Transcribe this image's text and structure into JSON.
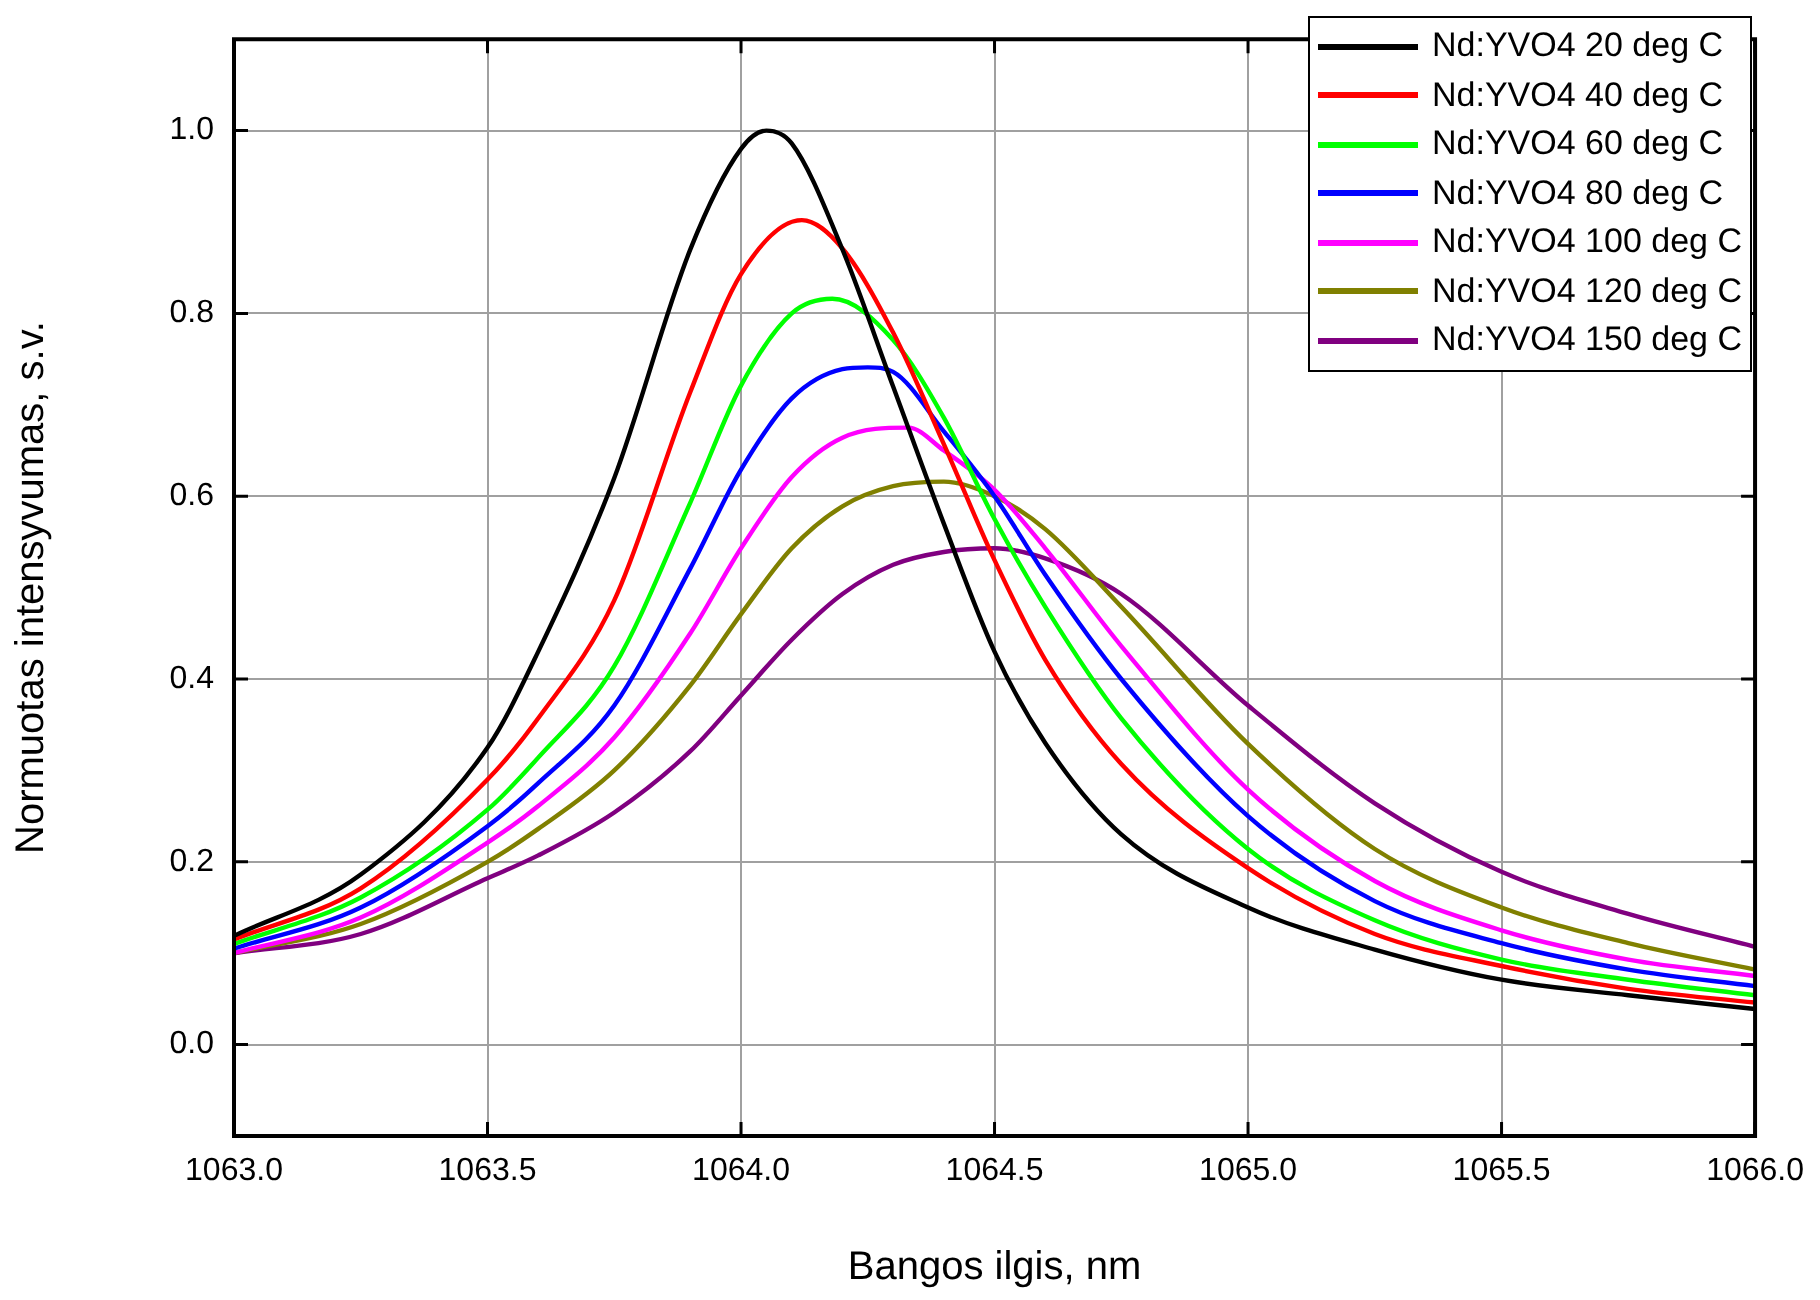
{
  "chart_data": {
    "type": "line",
    "xlabel": "Bangos ilgis, nm",
    "ylabel": "Normuotas intensyvumas, s.v.",
    "xlim": [
      1063.0,
      1066.0
    ],
    "xticks": [
      {
        "value": 1063.0,
        "label": "1063.0"
      },
      {
        "value": 1063.5,
        "label": "1063.5"
      },
      {
        "value": 1064.0,
        "label": "1064.0"
      },
      {
        "value": 1064.5,
        "label": "1064.5"
      },
      {
        "value": 1065.0,
        "label": "1065.0"
      },
      {
        "value": 1065.5,
        "label": "1065.5"
      },
      {
        "value": 1066.0,
        "label": "1066.0"
      }
    ],
    "ylim": [
      -0.1,
      1.1
    ],
    "yticks": [
      {
        "value": 0,
        "label": "0.0"
      },
      {
        "value": 0.2,
        "label": "0.2"
      },
      {
        "value": 0.4,
        "label": "0.4"
      },
      {
        "value": 0.6,
        "label": "0.6"
      },
      {
        "value": 0.8,
        "label": "0.8"
      },
      {
        "value": 1.0,
        "label": "1.0"
      }
    ],
    "grid": true,
    "legend": "top right",
    "marker": "none",
    "line_style": "solid",
    "series": [
      {
        "name": "Nd:YVO4 20 deg C",
        "color": "#000000",
        "x": [
          1063.0,
          1063.25,
          1063.5,
          1063.6,
          1063.75,
          1063.9,
          1064.0,
          1064.05,
          1064.1,
          1064.2,
          1064.3,
          1064.4,
          1064.5,
          1064.6,
          1064.75,
          1065.0,
          1065.25,
          1065.5,
          1065.75,
          1066.0
        ],
        "values": [
          0.119,
          0.186,
          0.325,
          0.43,
          0.62,
          0.87,
          0.98,
          1.0,
          0.986,
          0.87,
          0.72,
          0.57,
          0.43,
          0.33,
          0.23,
          0.15,
          0.104,
          0.071,
          0.054,
          0.039
        ]
      },
      {
        "name": "Nd:YVO4 40 deg C",
        "color": "#ff0000",
        "x": [
          1063.0,
          1063.25,
          1063.5,
          1063.6,
          1063.75,
          1063.9,
          1064.0,
          1064.12,
          1064.2,
          1064.3,
          1064.4,
          1064.5,
          1064.6,
          1064.75,
          1065.0,
          1065.25,
          1065.5,
          1065.75,
          1066.0
        ],
        "values": [
          0.115,
          0.171,
          0.29,
          0.357,
          0.486,
          0.714,
          0.843,
          0.902,
          0.871,
          0.779,
          0.657,
          0.53,
          0.421,
          0.307,
          0.193,
          0.121,
          0.086,
          0.061,
          0.046
        ]
      },
      {
        "name": "Nd:YVO4 60 deg C",
        "color": "#00ff00",
        "x": [
          1063.0,
          1063.25,
          1063.5,
          1063.6,
          1063.75,
          1063.9,
          1064.0,
          1064.1,
          1064.18,
          1064.3,
          1064.4,
          1064.5,
          1064.6,
          1064.75,
          1065.0,
          1065.25,
          1065.5,
          1065.75,
          1066.0
        ],
        "values": [
          0.11,
          0.161,
          0.257,
          0.314,
          0.414,
          0.593,
          0.721,
          0.8,
          0.816,
          0.771,
          0.686,
          0.575,
          0.479,
          0.357,
          0.214,
          0.136,
          0.093,
          0.071,
          0.054
        ]
      },
      {
        "name": "Nd:YVO4 80 deg C",
        "color": "#0000ff",
        "x": [
          1063.0,
          1063.25,
          1063.5,
          1063.6,
          1063.75,
          1063.9,
          1064.0,
          1064.1,
          1064.2,
          1064.25,
          1064.3,
          1064.4,
          1064.5,
          1064.6,
          1064.75,
          1065.0,
          1065.25,
          1065.5,
          1065.75,
          1066.0
        ],
        "values": [
          0.105,
          0.15,
          0.239,
          0.286,
          0.371,
          0.521,
          0.629,
          0.707,
          0.739,
          0.741,
          0.736,
          0.671,
          0.6,
          0.514,
          0.4,
          0.25,
          0.157,
          0.111,
          0.082,
          0.064
        ]
      },
      {
        "name": "Nd:YVO4 100 deg C",
        "color": "#ff00ff",
        "x": [
          1063.0,
          1063.25,
          1063.5,
          1063.6,
          1063.75,
          1063.9,
          1064.0,
          1064.1,
          1064.2,
          1064.33,
          1064.4,
          1064.5,
          1064.6,
          1064.75,
          1065.0,
          1065.25,
          1065.5,
          1065.75,
          1066.0
        ],
        "values": [
          0.1,
          0.139,
          0.221,
          0.261,
          0.336,
          0.45,
          0.543,
          0.621,
          0.664,
          0.675,
          0.65,
          0.607,
          0.543,
          0.436,
          0.279,
          0.179,
          0.125,
          0.093,
          0.075
        ]
      },
      {
        "name": "Nd:YVO4 120 deg C",
        "color": "#808000",
        "x": [
          1063.0,
          1063.25,
          1063.5,
          1063.6,
          1063.75,
          1063.9,
          1064.0,
          1064.1,
          1064.2,
          1064.3,
          1064.4,
          1064.5,
          1064.6,
          1064.75,
          1065.0,
          1065.25,
          1065.5,
          1065.75,
          1066.0
        ],
        "values": [
          0.1,
          0.132,
          0.2,
          0.236,
          0.3,
          0.393,
          0.471,
          0.543,
          0.589,
          0.611,
          0.616,
          0.6,
          0.564,
          0.479,
          0.329,
          0.214,
          0.15,
          0.111,
          0.082
        ]
      },
      {
        "name": "Nd:YVO4 150 deg C",
        "color": "#800080",
        "x": [
          1063.0,
          1063.25,
          1063.5,
          1063.6,
          1063.75,
          1063.9,
          1064.0,
          1064.1,
          1064.2,
          1064.3,
          1064.4,
          1064.5,
          1064.6,
          1064.75,
          1065.0,
          1065.25,
          1065.5,
          1065.75,
          1066.0
        ],
        "values": [
          0.1,
          0.121,
          0.182,
          0.207,
          0.254,
          0.321,
          0.382,
          0.443,
          0.493,
          0.525,
          0.539,
          0.543,
          0.532,
          0.493,
          0.371,
          0.264,
          0.189,
          0.143,
          0.107
        ]
      }
    ]
  }
}
